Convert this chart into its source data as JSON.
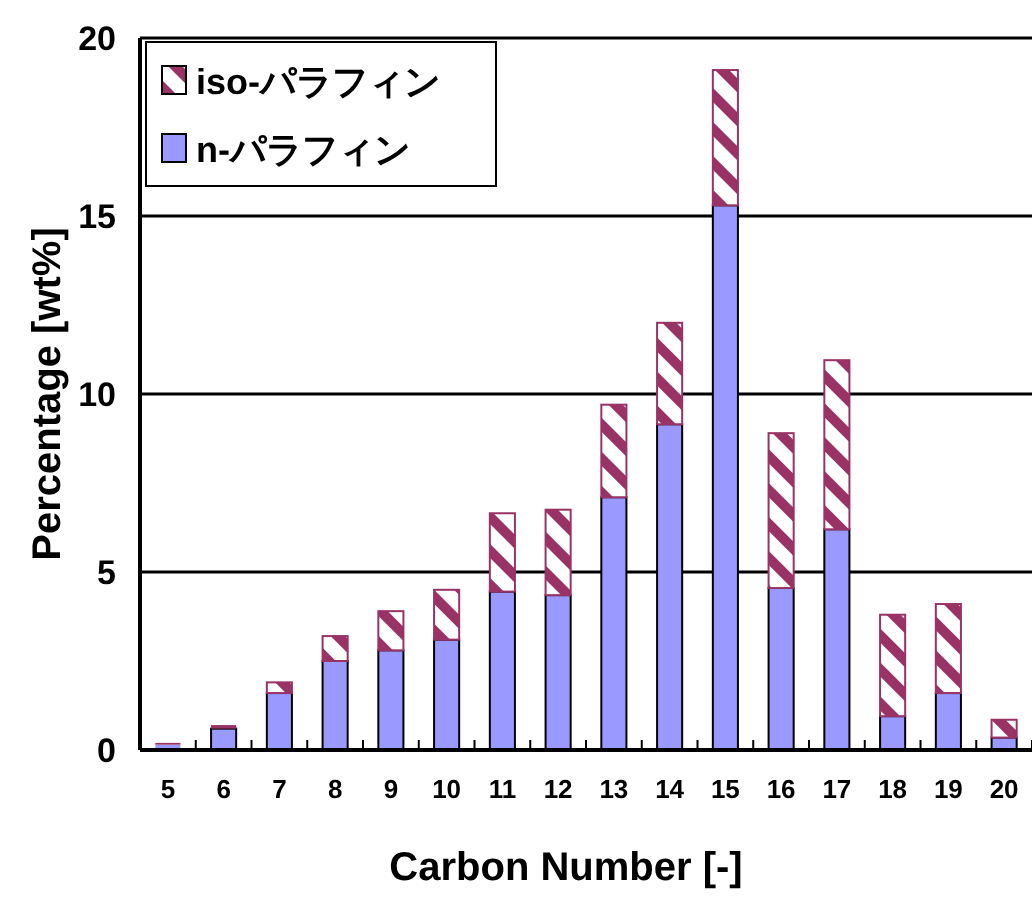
{
  "chart_data": {
    "type": "bar",
    "stacked": true,
    "xlabel": "Carbon Number [-]",
    "ylabel": "Percentage [wt%]",
    "categories": [
      "5",
      "6",
      "7",
      "8",
      "9",
      "10",
      "11",
      "12",
      "13",
      "14",
      "15",
      "16",
      "17",
      "18",
      "19",
      "20"
    ],
    "series": [
      {
        "name": "n-パラフィン",
        "color": "#9999ff",
        "values": [
          0.15,
          0.6,
          1.6,
          2.5,
          2.8,
          3.1,
          4.45,
          4.35,
          7.1,
          9.15,
          15.3,
          4.55,
          6.2,
          0.95,
          1.6,
          0.35
        ]
      },
      {
        "name": "iso-パラフィン",
        "color": "#993366",
        "values": [
          0.05,
          0.1,
          0.3,
          0.7,
          1.1,
          1.4,
          2.2,
          2.4,
          2.6,
          2.85,
          3.8,
          4.35,
          4.75,
          2.85,
          2.5,
          0.5
        ]
      }
    ],
    "ylim": [
      0,
      20
    ],
    "yticks": [
      0,
      5,
      10,
      15,
      20
    ],
    "grid": "y",
    "legend": "top left"
  }
}
